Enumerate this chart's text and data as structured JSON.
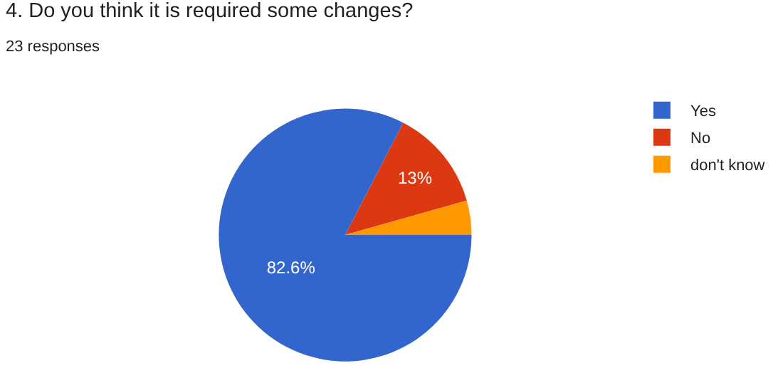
{
  "chart_data": {
    "type": "pie",
    "title": "4. Do you think it is required some changes?",
    "subtitle": "23 responses",
    "categories": [
      "Yes",
      "No",
      "don't know"
    ],
    "values": [
      82.6,
      13,
      4.4
    ],
    "colors": [
      "#3366cc",
      "#dc3912",
      "#ff9900"
    ],
    "value_labels": [
      "82.6%",
      "13%",
      null
    ],
    "legend": "top right"
  }
}
